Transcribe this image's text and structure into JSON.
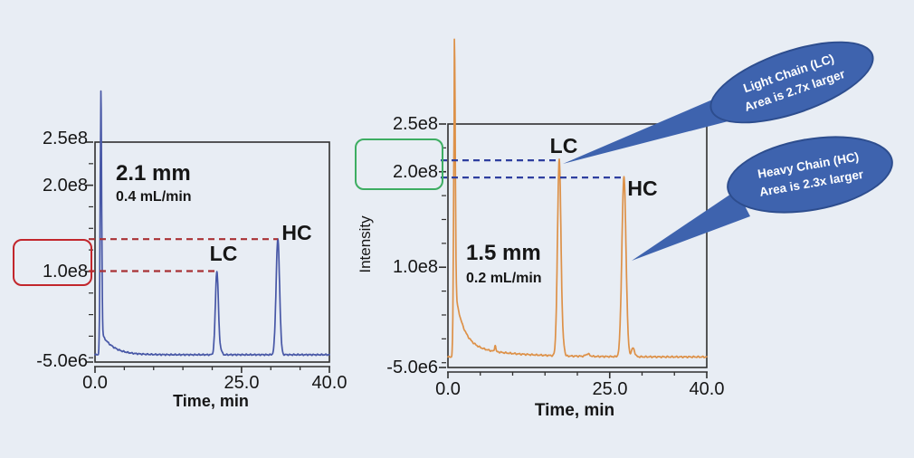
{
  "page": {
    "background": "#e8edf4"
  },
  "chart_data": [
    {
      "id": "chromatogram-2.1mm",
      "type": "line",
      "trace_color": "#4757a6",
      "annotation": {
        "line1": "2.1 mm",
        "line2": "0.4 mL/min"
      },
      "xlabel": "Time, min",
      "ylabel": "",
      "xlim": [
        0,
        40
      ],
      "ylim": [
        -5000000.0,
        250000000.0
      ],
      "xticks": [
        {
          "value": 0.0,
          "label": "0.0"
        },
        {
          "value": 25.0,
          "label": "25.0"
        },
        {
          "value": 40.0,
          "label": "40.0"
        }
      ],
      "xticks_minor": [
        5,
        10,
        15,
        20,
        30,
        35
      ],
      "yticks": [
        {
          "value": 250000000.0,
          "label": "2.5e8"
        },
        {
          "value": 200000000.0,
          "label": "2.0e8"
        },
        {
          "value": 100000000.0,
          "label": "1.0e8"
        },
        {
          "value": -5000000.0,
          "label": "-5.0e6"
        }
      ],
      "yticks_minor_step": 25000000.0,
      "baseline": 3500000.0,
      "injection_decay": [
        {
          "t0": 1.0,
          "amp": 26000000.0,
          "tau": 2.0
        }
      ],
      "peaks": [
        {
          "name": "injection",
          "t": 1.0,
          "height": 280000000.0,
          "sigma": 0.13
        },
        {
          "name": "light-chain",
          "label": "LC",
          "t": 20.8,
          "height": 97000000.0,
          "sigma": 0.26
        },
        {
          "name": "lc-shoulder",
          "t": 21.5,
          "height": 5000000.0,
          "sigma": 0.18
        },
        {
          "name": "heavy-chain",
          "label": "HC",
          "t": 31.2,
          "height": 134000000.0,
          "sigma": 0.3
        }
      ],
      "marker_lines": {
        "color": "#a93134",
        "items": [
          {
            "level": 137500000.0,
            "t_end": 31.2
          },
          {
            "level": 100500000.0,
            "t_end": 20.8
          }
        ]
      },
      "highlight_box": {
        "around_tick": "1.0e8",
        "color": "#c2262c"
      }
    },
    {
      "id": "chromatogram-1.5mm",
      "type": "line",
      "trace_color": "#dd9148",
      "annotation": {
        "line1": "1.5 mm",
        "line2": "0.2 mL/min"
      },
      "xlabel": "Time, min",
      "ylabel": "Intensity",
      "xlim": [
        0,
        40
      ],
      "ylim": [
        -5000000.0,
        250000000.0
      ],
      "xticks": [
        {
          "value": 0.0,
          "label": "0.0"
        },
        {
          "value": 25.0,
          "label": "25.0"
        },
        {
          "value": 40.0,
          "label": "40.0"
        }
      ],
      "xticks_minor": [
        5,
        10,
        15,
        20,
        30,
        35
      ],
      "yticks": [
        {
          "value": 250000000.0,
          "label": "2.5e8"
        },
        {
          "value": 200000000.0,
          "label": "2.0e8"
        },
        {
          "value": 100000000.0,
          "label": "1.0e8"
        },
        {
          "value": -5000000.0,
          "label": "-5.0e6"
        }
      ],
      "yticks_minor_step": 25000000.0,
      "baseline": 6000000.0,
      "injection_decay": [
        {
          "t0": 1.0,
          "amp": 60000000.0,
          "tau": 1.3
        },
        {
          "t0": 1.0,
          "amp": 13000000.0,
          "tau": 7.0
        }
      ],
      "peaks": [
        {
          "name": "injection",
          "t": 1.0,
          "height": 260000000.0,
          "sigma": 0.13
        },
        {
          "name": "baseline-blip",
          "t": 7.3,
          "height": 7000000.0,
          "sigma": 0.09
        },
        {
          "name": "light-chain",
          "label": "LC",
          "t": 17.2,
          "height": 206000000.0,
          "sigma": 0.27
        },
        {
          "name": "lc-shoulder",
          "t": 17.9,
          "height": 8000000.0,
          "sigma": 0.15
        },
        {
          "name": "baseline-bump",
          "t": 21.6,
          "height": 2500000.0,
          "sigma": 0.3
        },
        {
          "name": "heavy-chain",
          "label": "HC",
          "t": 27.2,
          "height": 188000000.0,
          "sigma": 0.32
        },
        {
          "name": "hc-shoulder",
          "t": 28.6,
          "height": 9000000.0,
          "sigma": 0.25
        }
      ],
      "marker_lines": {
        "color": "#2e3f9f",
        "items": [
          {
            "level": 212000000.0,
            "t_end": 17.2
          },
          {
            "level": 194000000.0,
            "t_end": 27.2
          }
        ]
      },
      "highlight_box": {
        "around_tick": "2.0e8",
        "color": "#3dad62"
      }
    }
  ],
  "callouts": [
    {
      "line1": "Light Chain (LC)",
      "line2": "Area is 2.7x larger",
      "fill": "#3e63ae",
      "border": "#2d4d8e",
      "text_color": "#ffffff",
      "target_peak": "LC"
    },
    {
      "line1": "Heavy Chain (HC)",
      "line2": "Area is 2.3x larger",
      "fill": "#3e63ae",
      "border": "#2d4d8e",
      "text_color": "#ffffff",
      "target_peak": "HC"
    }
  ]
}
